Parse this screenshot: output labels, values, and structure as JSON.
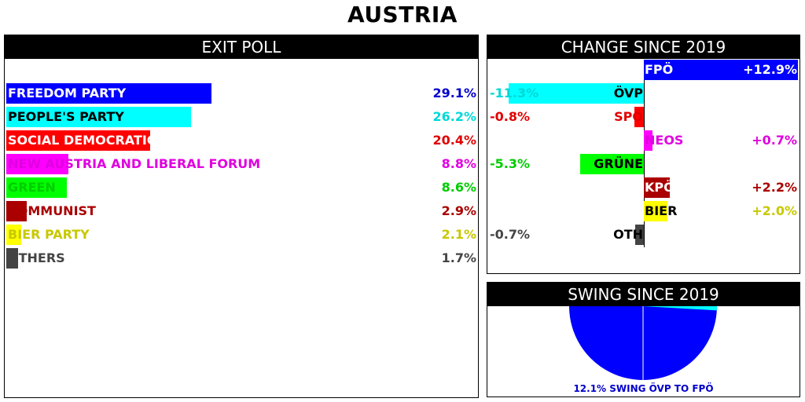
{
  "title": "AUSTRIA",
  "chart_data": [
    {
      "type": "bar",
      "title": "EXIT POLL",
      "categories": [
        "FREEDOM PARTY",
        "PEOPLE'S PARTY",
        "SOCIAL DEMOCRATIC PARTY",
        "NEW AUSTRIA AND LIBERAL FORUM",
        "GREEN",
        "COMMUNIST",
        "BIER PARTY",
        "OTHERS"
      ],
      "values": [
        29.1,
        26.2,
        20.4,
        8.8,
        8.6,
        2.9,
        2.1,
        1.7
      ],
      "labels": [
        "29.1%",
        "26.2%",
        "20.4%",
        "8.8%",
        "8.6%",
        "2.9%",
        "2.1%",
        "1.7%"
      ],
      "colors": [
        "#0000ff",
        "#00ffff",
        "#ff0000",
        "#ff00ff",
        "#00ff00",
        "#aa0000",
        "#ffff00",
        "#444444"
      ],
      "label_colors": [
        "#0000cc",
        "#00d8d8",
        "#e00000",
        "#e000e0",
        "#00cc00",
        "#aa0000",
        "#c8c800",
        "#444444"
      ],
      "xlim": [
        0,
        67
      ]
    },
    {
      "type": "bar",
      "title": "CHANGE SINCE 2019",
      "categories": [
        "FPÖ",
        "ÖVP",
        "SPÖ",
        "NEOS",
        "GRÜNE",
        "KPÖ",
        "BIER",
        "OTH"
      ],
      "values": [
        12.9,
        -11.3,
        -0.8,
        0.7,
        -5.3,
        2.2,
        2.0,
        -0.7
      ],
      "labels": [
        "+12.9%",
        "-11.3%",
        "-0.8%",
        "+0.7%",
        "-5.3%",
        "+2.2%",
        "+2.0%",
        "-0.7%"
      ],
      "colors": [
        "#0000ff",
        "#00ffff",
        "#ff0000",
        "#ff00ff",
        "#00ff00",
        "#aa0000",
        "#ffff00",
        "#444444"
      ],
      "label_colors": [
        "#ffffff",
        "#00d8d8",
        "#e00000",
        "#e000e0",
        "#00cc00",
        "#aa0000",
        "#c8c800",
        "#444444"
      ],
      "xlim": [
        -13,
        13
      ]
    },
    {
      "type": "pie",
      "title": "SWING SINCE 2019",
      "swing_value": 12.1,
      "from": "ÖVP",
      "to": "FPÖ",
      "caption": "12.1% SWING ÖVP TO FPÖ",
      "colors": {
        "to": "#0000ff",
        "from": "#00ffff"
      }
    }
  ]
}
